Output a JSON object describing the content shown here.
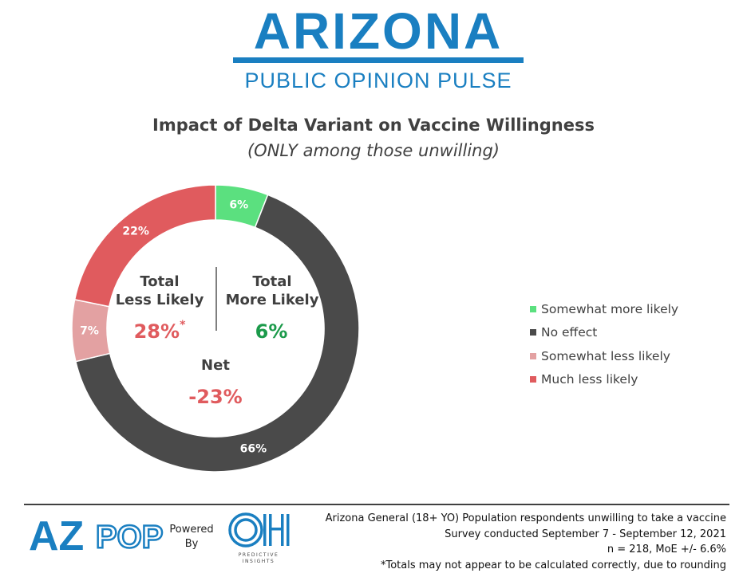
{
  "brand": {
    "main": "ARIZONA",
    "sub": "PUBLIC OPINION PULSE"
  },
  "chart_data": {
    "type": "pie",
    "title": "Impact of Delta Variant on Vaccine Willingness",
    "subtitle": "(ONLY among those unwilling)",
    "categories": [
      "Somewhat more likely",
      "No effect",
      "Somewhat less likely",
      "Much less likely"
    ],
    "values": [
      6,
      66,
      7,
      22
    ],
    "data_labels": [
      "6%",
      "66%",
      "7%",
      "22%"
    ],
    "colors": [
      "#5be07f",
      "#4a4a4a",
      "#e3a1a2",
      "#e05b5e"
    ],
    "legend_position": "right",
    "donut": true
  },
  "center": {
    "less_head_line1": "Total",
    "less_head_line2": "Less Likely",
    "more_head_line1": "Total",
    "more_head_line2": "More Likely",
    "less_value": "28%",
    "less_value_mark": "*",
    "more_value": "6%",
    "net_label": "Net",
    "net_value": "-23%",
    "less_color": "#e05b5e",
    "more_color": "#1b9a4a"
  },
  "footer": {
    "logo_text": "AZPOP",
    "powered_line1": "Powered",
    "powered_line2": "By",
    "partner_logo_text": "OH",
    "partner_sub_line1": "PREDICTIVE",
    "partner_sub_line2": "INSIGHTS",
    "notes": [
      "Arizona General (18+ YO) Population respondents unwilling to take a vaccine",
      "Survey conducted September 7 - September 12, 2021",
      "n = 218, MoE +/- 6.6%",
      "*Totals may not appear to be calculated correctly, due to rounding"
    ]
  }
}
